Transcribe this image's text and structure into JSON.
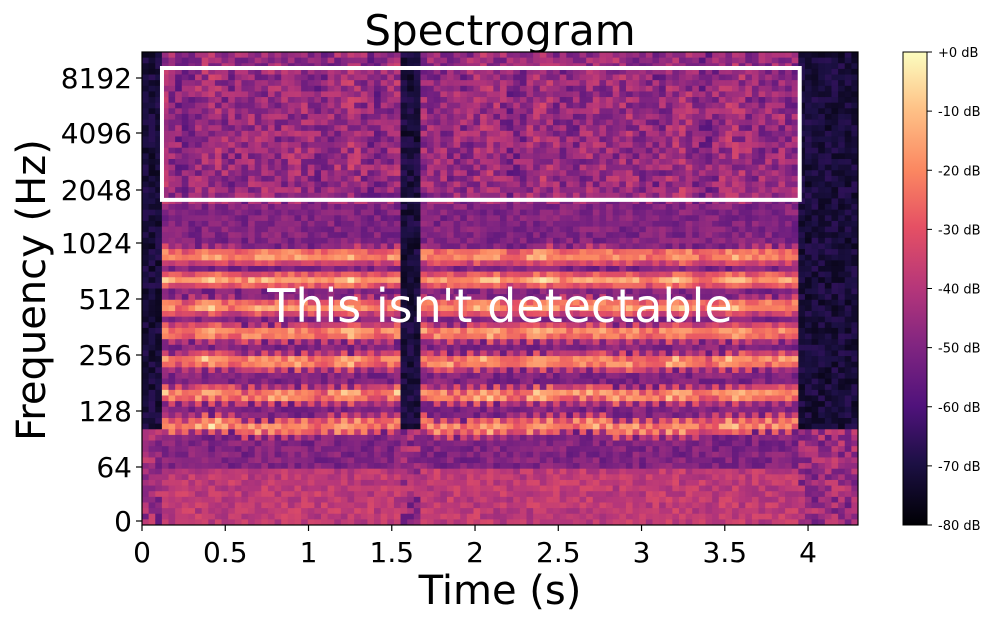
{
  "chart_data": {
    "type": "heatmap",
    "title": "Spectrogram",
    "xlabel": "Time (s)",
    "ylabel": "Frequency (Hz)",
    "xlim": [
      0,
      4.3
    ],
    "x_ticks": [
      "0",
      "0.5",
      "1",
      "1.5",
      "2",
      "2.5",
      "3",
      "3.5",
      "4"
    ],
    "x_tick_values": [
      0,
      0.5,
      1,
      1.5,
      2,
      2.5,
      3,
      3.5,
      4
    ],
    "y_scale": "symlog base 2",
    "y_ticks": [
      "0",
      "64",
      "128",
      "256",
      "512",
      "1024",
      "2048",
      "4096",
      "8192"
    ],
    "y_tick_values": [
      0,
      64,
      128,
      256,
      512,
      1024,
      2048,
      4096,
      8192
    ],
    "colormap": "magma",
    "colorbar": {
      "range_db": [
        -80,
        0
      ],
      "ticks": [
        "+0 dB",
        "-10 dB",
        "-20 dB",
        "-30 dB",
        "-40 dB",
        "-50 dB",
        "-60 dB",
        "-70 dB",
        "-80 dB"
      ],
      "tick_values": [
        0,
        -10,
        -20,
        -30,
        -40,
        -50,
        -60,
        -70,
        -80
      ]
    },
    "speech_segments_s": [
      [
        0.1,
        1.55
      ],
      [
        1.68,
        3.95
      ]
    ],
    "harmonic_bands_hz": [
      100,
      150,
      230,
      330,
      460,
      640,
      870
    ],
    "highlight_box": {
      "time_range_s": [
        0.12,
        3.95
      ],
      "freq_range_hz": [
        1800,
        9500
      ],
      "color": "#ffffff"
    },
    "annotation": "This isn't detectable"
  }
}
